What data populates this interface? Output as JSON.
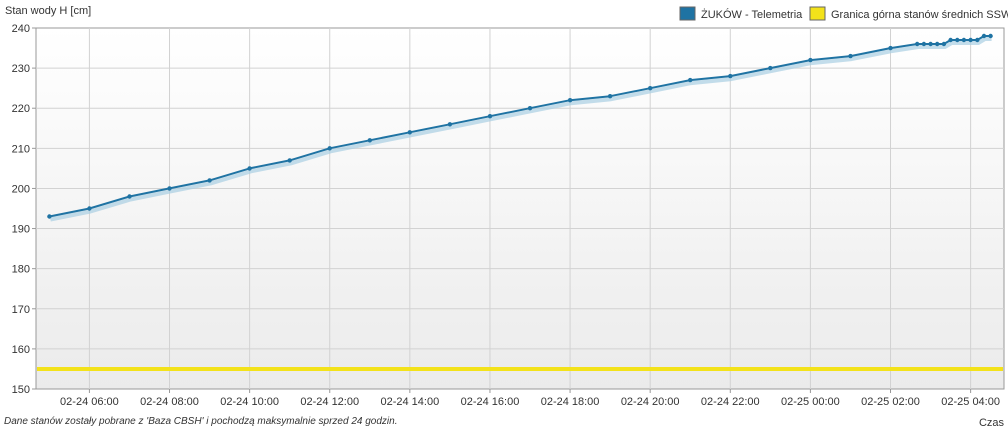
{
  "chart_data": {
    "type": "line",
    "ylabel": "Stan wody H [cm]",
    "xlabel": "Czas",
    "ylim": [
      150,
      240
    ],
    "yticks": [
      150,
      160,
      170,
      180,
      190,
      200,
      210,
      220,
      230,
      240
    ],
    "xlim": [
      "2024-02-24T04:40",
      "2024-02-25T04:50"
    ],
    "xticks": [
      "02-24 06:00",
      "02-24 08:00",
      "02-24 10:00",
      "02-24 12:00",
      "02-24 14:00",
      "02-24 16:00",
      "02-24 18:00",
      "02-24 20:00",
      "02-24 22:00",
      "02-25 00:00",
      "02-25 02:00",
      "02-25 04:00"
    ],
    "grid": true,
    "legend_position": "top-right",
    "series": [
      {
        "name": "ŻUKÓW - Telemetria",
        "color": "#1f73a3",
        "points": [
          [
            "02-24 05:00",
            193
          ],
          [
            "02-24 06:00",
            195
          ],
          [
            "02-24 07:00",
            198
          ],
          [
            "02-24 08:00",
            200
          ],
          [
            "02-24 09:00",
            202
          ],
          [
            "02-24 10:00",
            205
          ],
          [
            "02-24 11:00",
            207
          ],
          [
            "02-24 12:00",
            210
          ],
          [
            "02-24 13:00",
            212
          ],
          [
            "02-24 14:00",
            214
          ],
          [
            "02-24 15:00",
            216
          ],
          [
            "02-24 16:00",
            218
          ],
          [
            "02-24 17:00",
            220
          ],
          [
            "02-24 18:00",
            222
          ],
          [
            "02-24 19:00",
            223
          ],
          [
            "02-24 20:00",
            225
          ],
          [
            "02-24 21:00",
            227
          ],
          [
            "02-24 22:00",
            228
          ],
          [
            "02-24 23:00",
            230
          ],
          [
            "02-25 00:00",
            232
          ],
          [
            "02-25 01:00",
            233
          ],
          [
            "02-25 02:00",
            235
          ],
          [
            "02-25 02:40",
            236
          ],
          [
            "02-25 02:50",
            236
          ],
          [
            "02-25 03:00",
            236
          ],
          [
            "02-25 03:10",
            236
          ],
          [
            "02-25 03:20",
            236
          ],
          [
            "02-25 03:30",
            237
          ],
          [
            "02-25 03:40",
            237
          ],
          [
            "02-25 03:50",
            237
          ],
          [
            "02-25 04:00",
            237
          ],
          [
            "02-25 04:10",
            237
          ],
          [
            "02-25 04:20",
            238
          ],
          [
            "02-25 04:30",
            238
          ]
        ]
      },
      {
        "name": "Granica górna stanów średnich SSW",
        "color": "#f3e21a",
        "constant": 155
      }
    ]
  },
  "footer": {
    "note": "Dane stanów zostały pobrane z 'Baza CBSH' i pochodzą maksymalnie sprzed 24 godzin."
  }
}
